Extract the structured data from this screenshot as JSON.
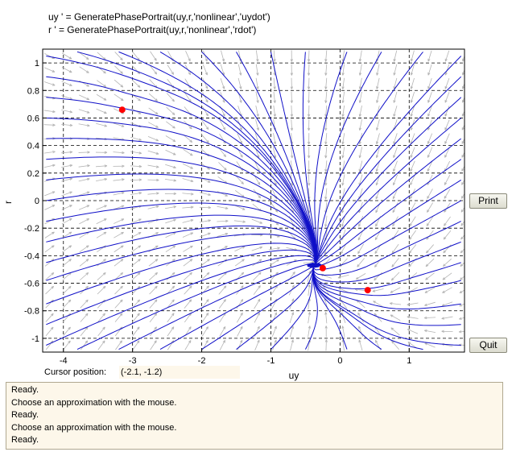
{
  "equations": {
    "uy": "uy ' = GeneratePhasePortrait(uy,r,'nonlinear','uydot')",
    "r": "r ' = GeneratePhasePortrait(uy,r,'nonlinear','rdot')"
  },
  "buttons": {
    "print": "Print",
    "quit": "Quit"
  },
  "status": {
    "cursor_label": "Cursor position:",
    "cursor_value": "(-2.1, -1.2)"
  },
  "log": [
    "Ready.",
    "Choose an approximation with the mouse.",
    "Ready.",
    "Choose an approximation with the mouse.",
    "Ready."
  ],
  "chart_data": {
    "type": "scatter",
    "xlabel": "uy",
    "ylabel": "r",
    "xlim": [
      -4.3,
      1.8
    ],
    "ylim": [
      -1.1,
      1.1
    ],
    "xticks": [
      -4,
      -3,
      -2,
      -1,
      0,
      1
    ],
    "yticks": [
      -1,
      -0.8,
      -0.6,
      -0.4,
      -0.2,
      0,
      0.2,
      0.4,
      0.6,
      0.8,
      1
    ],
    "grid": true,
    "equilibria": [
      {
        "x": -3.15,
        "y": 0.66
      },
      {
        "x": -0.25,
        "y": -0.49
      },
      {
        "x": 0.4,
        "y": -0.65
      }
    ],
    "colors": {
      "trajectory": "#1010c8",
      "vector": "#b4b4b4",
      "equilibrium": "#ff0000"
    }
  }
}
